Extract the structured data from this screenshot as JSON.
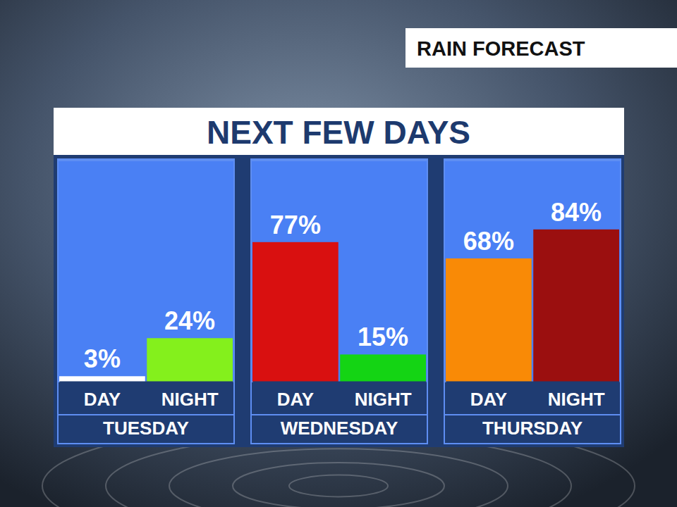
{
  "header": {
    "label": "RAIN FORECAST",
    "title": "NEXT FEW DAYS"
  },
  "chart_data": [
    {
      "type": "bar",
      "title": "TUESDAY",
      "categories": [
        "DAY",
        "NIGHT"
      ],
      "values": [
        3,
        24
      ],
      "value_labels": [
        "3%",
        "24%"
      ],
      "colors": [
        "#ffffff",
        "#84f01c"
      ],
      "ylim": [
        0,
        122
      ],
      "data_labels": true,
      "tick_labels": "x"
    },
    {
      "type": "bar",
      "title": "WEDNESDAY",
      "categories": [
        "DAY",
        "NIGHT"
      ],
      "values": [
        77,
        15
      ],
      "value_labels": [
        "77%",
        "15%"
      ],
      "colors": [
        "#d91010",
        "#14d414"
      ],
      "ylim": [
        0,
        122
      ],
      "data_labels": true,
      "tick_labels": "x"
    },
    {
      "type": "bar",
      "title": "THURSDAY",
      "categories": [
        "DAY",
        "NIGHT"
      ],
      "values": [
        68,
        84
      ],
      "value_labels": [
        "68%",
        "84%"
      ],
      "colors": [
        "#f98a06",
        "#9b0f0f"
      ],
      "ylim": [
        0,
        122
      ],
      "data_labels": true,
      "tick_labels": "x"
    }
  ]
}
